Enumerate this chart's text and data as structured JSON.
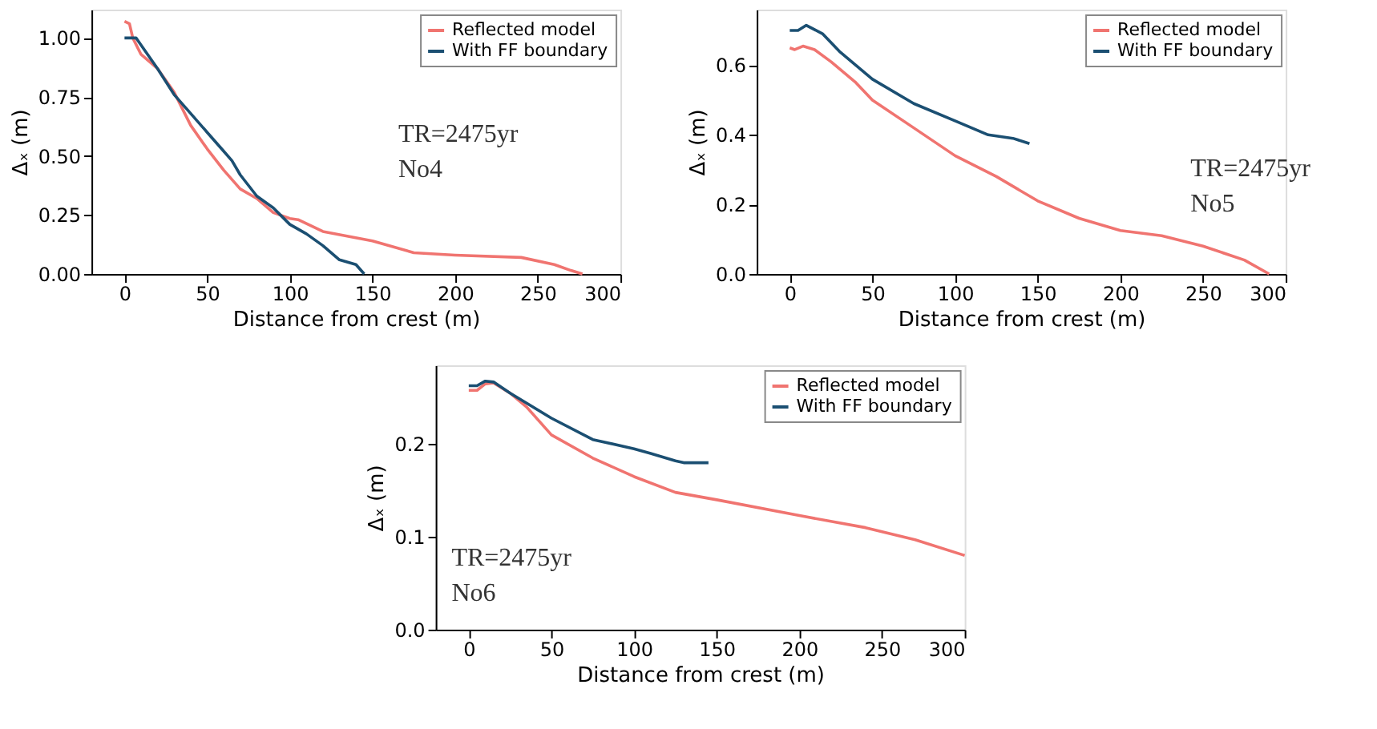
{
  "chart_data": [
    {
      "type": "line",
      "xlabel": "Distance from crest (m)",
      "ylabel": "Δₓ (m)",
      "xlim": [
        -20,
        300
      ],
      "ylim": [
        0,
        1.12
      ],
      "xticks": [
        0,
        50,
        100,
        150,
        200,
        250,
        300
      ],
      "yticks": [
        {
          "value": 0,
          "label": "0.00"
        },
        {
          "value": 0.25,
          "label": "0.25"
        },
        {
          "value": 0.5,
          "label": "0.50"
        },
        {
          "value": 0.75,
          "label": "0.75"
        },
        {
          "value": 1,
          "label": "1.00"
        }
      ],
      "legend": "top right",
      "grid": false,
      "annotations": [
        "TR=2475yr",
        "No4"
      ],
      "series": [
        {
          "name": "Reflected model",
          "color": "#f07470",
          "x": [
            0,
            3,
            5,
            10,
            20,
            30,
            40,
            50,
            60,
            70,
            80,
            90,
            100,
            105,
            120,
            150,
            175,
            200,
            240,
            260,
            270,
            277
          ],
          "values": [
            1.07,
            1.06,
            1.0,
            0.93,
            0.87,
            0.77,
            0.63,
            0.53,
            0.44,
            0.36,
            0.32,
            0.26,
            0.235,
            0.23,
            0.18,
            0.14,
            0.09,
            0.08,
            0.07,
            0.04,
            0.015,
            0
          ]
        },
        {
          "name": "With FF boundary",
          "color": "#1b4f72",
          "x": [
            0,
            7,
            10,
            20,
            30,
            40,
            50,
            60,
            65,
            70,
            80,
            90,
            100,
            110,
            120,
            130,
            140,
            145
          ],
          "values": [
            1.0,
            1.0,
            0.97,
            0.87,
            0.76,
            0.68,
            0.6,
            0.52,
            0.48,
            0.42,
            0.33,
            0.28,
            0.21,
            0.17,
            0.12,
            0.06,
            0.04,
            0
          ]
        }
      ]
    },
    {
      "type": "line",
      "xlabel": "Distance from crest (m)",
      "ylabel": "Δₓ (m)",
      "xlim": [
        -20,
        300
      ],
      "ylim": [
        0,
        0.76
      ],
      "xticks": [
        0,
        50,
        100,
        150,
        200,
        250,
        300
      ],
      "yticks": [
        {
          "value": 0,
          "label": "0.0"
        },
        0.2,
        0.4,
        0.6
      ],
      "legend": "top right",
      "grid": false,
      "annotations": [
        "TR=2475yr",
        "No5"
      ],
      "series": [
        {
          "name": "Reflected model",
          "color": "#f07470",
          "x": [
            0,
            3,
            8,
            15,
            25,
            40,
            50,
            75,
            100,
            125,
            150,
            175,
            200,
            225,
            250,
            275,
            290
          ],
          "values": [
            0.65,
            0.645,
            0.655,
            0.645,
            0.61,
            0.55,
            0.5,
            0.42,
            0.34,
            0.28,
            0.21,
            0.16,
            0.125,
            0.11,
            0.08,
            0.04,
            0
          ]
        },
        {
          "name": "With FF boundary",
          "color": "#1b4f72",
          "x": [
            0,
            5,
            10,
            20,
            30,
            50,
            75,
            100,
            120,
            135,
            145
          ],
          "values": [
            0.7,
            0.7,
            0.715,
            0.69,
            0.64,
            0.56,
            0.49,
            0.44,
            0.4,
            0.39,
            0.375
          ]
        }
      ]
    },
    {
      "type": "line",
      "xlabel": "Distance from crest (m)",
      "ylabel": "Δₓ (m)",
      "xlim": [
        -20,
        300
      ],
      "ylim": [
        0,
        0.285
      ],
      "xticks": [
        0,
        50,
        100,
        150,
        200,
        250,
        300
      ],
      "yticks": [
        {
          "value": 0,
          "label": "0.0"
        },
        0.1,
        0.2
      ],
      "legend": "top right",
      "grid": false,
      "annotations": [
        "TR=2475yr",
        "No6"
      ],
      "series": [
        {
          "name": "Reflected model",
          "color": "#f07470",
          "x": [
            0,
            5,
            10,
            15,
            25,
            35,
            50,
            75,
            100,
            125,
            150,
            200,
            240,
            270,
            300
          ],
          "values": [
            0.258,
            0.258,
            0.265,
            0.266,
            0.255,
            0.24,
            0.21,
            0.185,
            0.165,
            0.148,
            0.14,
            0.123,
            0.11,
            0.097,
            0.08
          ]
        },
        {
          "name": "With FF boundary",
          "color": "#1b4f72",
          "x": [
            0,
            5,
            10,
            15,
            25,
            50,
            75,
            100,
            110,
            125,
            130,
            145
          ],
          "values": [
            0.263,
            0.263,
            0.268,
            0.267,
            0.255,
            0.228,
            0.205,
            0.195,
            0.19,
            0.182,
            0.18,
            0.18
          ]
        }
      ]
    }
  ]
}
